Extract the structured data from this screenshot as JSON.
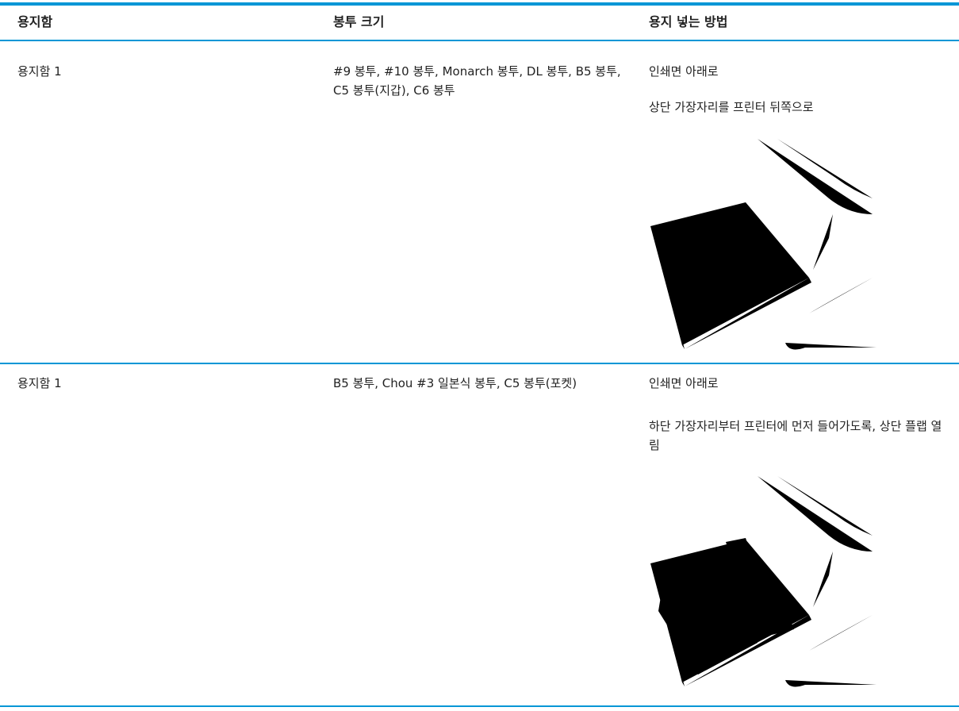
{
  "table": {
    "headers": [
      "용지함",
      "봉투 크기",
      "용지 넣는 방법"
    ],
    "rows": [
      {
        "tray": "용지함 1",
        "sizes": "#9 봉투, #10 봉투, Monarch 봉투, DL 봉투, B5 봉투, C5 봉투(지갑), C6 봉투",
        "instructions": [
          "인쇄면 아래로",
          "상단 가장자리를 프린터 뒤쪽으로"
        ]
      },
      {
        "tray": "용지함 1",
        "sizes": "B5 봉투, Chou #3 일본식 봉투, C5 봉투(포켓)",
        "instructions": [
          "인쇄면 아래로",
          "하단 가장자리부터 프린터에 먼저 들어가도록, 상단 플랩 열림"
        ]
      }
    ]
  }
}
